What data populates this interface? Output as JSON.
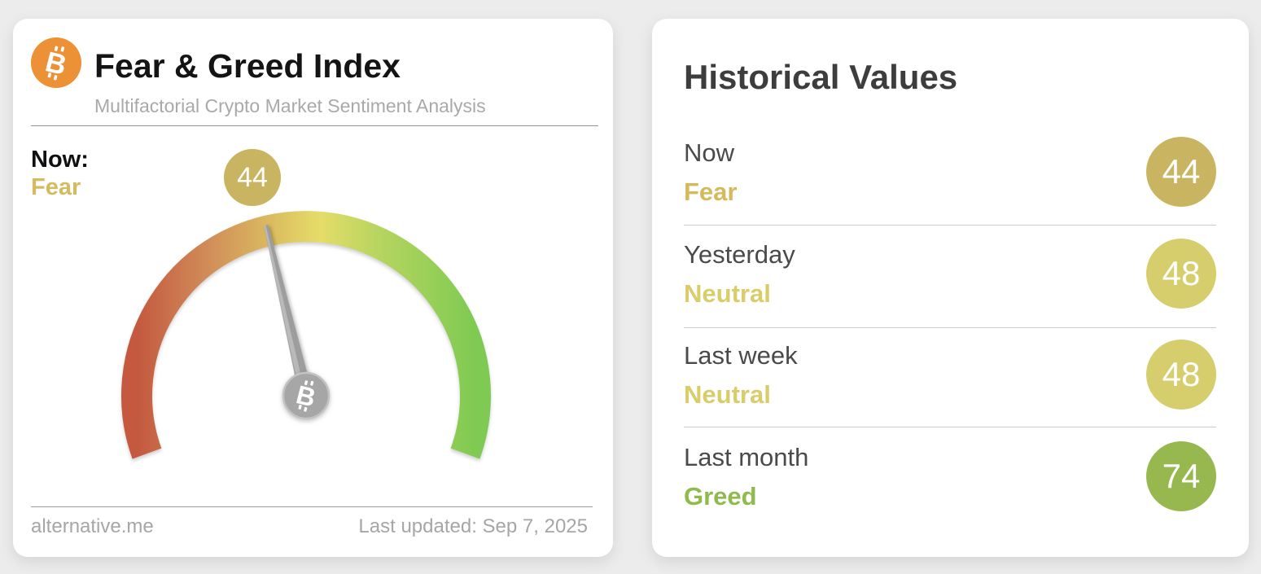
{
  "page": {
    "background_color": "#ececec"
  },
  "gauge_card": {
    "icon": "bitcoin-icon",
    "icon_color": "#ec9135",
    "title": "Fear & Greed Index",
    "subtitle": "Multifactorial Crypto Market Sentiment Analysis",
    "now_label": "Now:",
    "now_sentiment": "Fear",
    "now_sentiment_color": "#d6ba5e",
    "now_value": "44",
    "now_badge_color": "#c9b561",
    "source": "alternative.me",
    "last_updated": "Last updated: Sep 7, 2025",
    "gauge": {
      "min": 0,
      "max": 100,
      "value": 44,
      "sweep_degrees": 220,
      "colors": [
        "#c4593f",
        "#d08a58",
        "#dcc161",
        "#e6dc69",
        "#b5d55f",
        "#7fca52"
      ],
      "needle_color": "#9d9d9d",
      "hub_color": "#a6a6a6"
    }
  },
  "historical_card": {
    "title": "Historical Values",
    "rows": [
      {
        "label": "Now",
        "sentiment": "Fear",
        "value": "44",
        "sentiment_color": "#d5b95a",
        "badge_color": "#c9b561"
      },
      {
        "label": "Yesterday",
        "sentiment": "Neutral",
        "value": "48",
        "sentiment_color": "#d8cd68",
        "badge_color": "#d6cd6d"
      },
      {
        "label": "Last week",
        "sentiment": "Neutral",
        "value": "48",
        "sentiment_color": "#d8cd68",
        "badge_color": "#d6cd6d"
      },
      {
        "label": "Last month",
        "sentiment": "Greed",
        "value": "74",
        "sentiment_color": "#8fbb4c",
        "badge_color": "#96b84e"
      }
    ]
  },
  "chart_data": {
    "type": "gauge",
    "title": "Fear & Greed Index",
    "min": 0,
    "max": 100,
    "value": 44,
    "value_label": "Fear",
    "scale_colors_low_to_high": [
      "#c4593f",
      "#dcc161",
      "#e6dc69",
      "#7fca52"
    ],
    "historical": [
      {
        "period": "Now",
        "value": 44,
        "sentiment": "Fear"
      },
      {
        "period": "Yesterday",
        "value": 48,
        "sentiment": "Neutral"
      },
      {
        "period": "Last week",
        "value": 48,
        "sentiment": "Neutral"
      },
      {
        "period": "Last month",
        "value": 74,
        "sentiment": "Greed"
      }
    ]
  }
}
